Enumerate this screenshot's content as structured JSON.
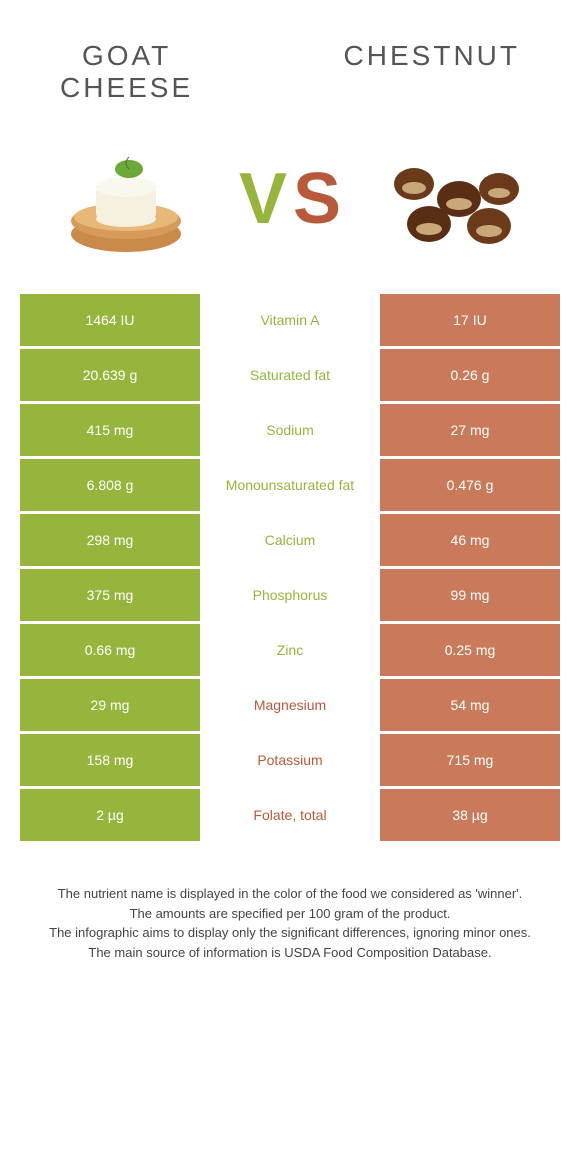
{
  "header": {
    "left_title_line1": "GOAT",
    "left_title_line2": "CHEESE",
    "right_title": "CHESTNUT"
  },
  "vs": {
    "v": "V",
    "s": "S"
  },
  "colors": {
    "green": "#97b53c",
    "brown": "#c97a5a",
    "brown_text": "#b85a3a"
  },
  "rows": [
    {
      "left": "1464 IU",
      "mid": "Vitamin A",
      "right": "17 IU",
      "winner": "green"
    },
    {
      "left": "20.639 g",
      "mid": "Saturated fat",
      "right": "0.26 g",
      "winner": "green"
    },
    {
      "left": "415 mg",
      "mid": "Sodium",
      "right": "27 mg",
      "winner": "green"
    },
    {
      "left": "6.808 g",
      "mid": "Monounsaturated fat",
      "right": "0.476 g",
      "winner": "green"
    },
    {
      "left": "298 mg",
      "mid": "Calcium",
      "right": "46 mg",
      "winner": "green"
    },
    {
      "left": "375 mg",
      "mid": "Phosphorus",
      "right": "99 mg",
      "winner": "green"
    },
    {
      "left": "0.66 mg",
      "mid": "Zinc",
      "right": "0.25 mg",
      "winner": "green"
    },
    {
      "left": "29 mg",
      "mid": "Magnesium",
      "right": "54 mg",
      "winner": "brown"
    },
    {
      "left": "158 mg",
      "mid": "Potassium",
      "right": "715 mg",
      "winner": "brown"
    },
    {
      "left": "2 µg",
      "mid": "Folate, total",
      "right": "38 µg",
      "winner": "brown"
    }
  ],
  "footer": {
    "line1": "The nutrient name is displayed in the color of the food we considered as 'winner'.",
    "line2": "The amounts are specified per 100 gram of the product.",
    "line3": "The infographic aims to display only the significant differences, ignoring minor ones.",
    "line4": "The main source of information is USDA Food Composition Database."
  }
}
